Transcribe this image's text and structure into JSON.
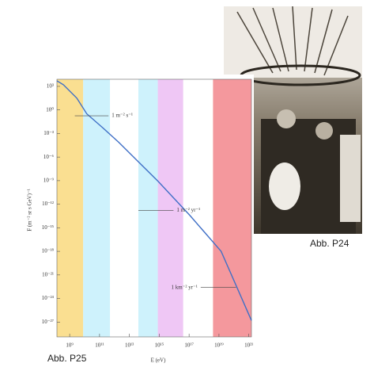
{
  "chart_data": {
    "type": "line",
    "xlabel": "E (eV)",
    "ylabel": "F (m⁻² sr s GeV)⁻¹",
    "xscale": "log",
    "yscale": "log",
    "xlim": [
      140000000.0,
      1.5e+21
    ],
    "ylim": [
      1.3e-29,
      8000.0
    ],
    "xticks": [
      {
        "value": 1000000000.0,
        "label": "10⁹"
      },
      {
        "value": 100000000000.0,
        "label": "10¹¹"
      },
      {
        "value": 10000000000000.0,
        "label": "10¹³"
      },
      {
        "value": 1000000000000000.0,
        "label": "10¹⁵"
      },
      {
        "value": 1e+17,
        "label": "10¹⁷"
      },
      {
        "value": 1e+19,
        "label": "10¹⁹"
      },
      {
        "value": 1e+21,
        "label": "10²¹"
      }
    ],
    "yticks": [
      {
        "value": 1000.0,
        "label": "10³"
      },
      {
        "value": 1,
        "label": "10⁰"
      },
      {
        "value": 0.001,
        "label": "10⁻³"
      },
      {
        "value": 1e-06,
        "label": "10⁻⁶"
      },
      {
        "value": 1e-09,
        "label": "10⁻⁹"
      },
      {
        "value": 1e-12,
        "label": "10⁻¹²"
      },
      {
        "value": 1e-15,
        "label": "10⁻¹⁵"
      },
      {
        "value": 1e-18,
        "label": "10⁻¹⁸"
      },
      {
        "value": 1e-21,
        "label": "10⁻²¹"
      },
      {
        "value": 1e-24,
        "label": "10⁻²⁴"
      },
      {
        "value": 1e-27,
        "label": "10⁻²⁷"
      }
    ],
    "bands": [
      {
        "from": 140000000.0,
        "to": 8000000000.0,
        "color": "#f9d97e"
      },
      {
        "from": 8000000000.0,
        "to": 500000000000.0,
        "color": "#c6f0fb"
      },
      {
        "from": 40000000000000.0,
        "to": 800000000000000.0,
        "color": "#c6f0fb"
      },
      {
        "from": 800000000000000.0,
        "to": 4e+16,
        "color": "#ecbdf3"
      },
      {
        "from": 4e+18,
        "to": 1.5e+21,
        "color": "#f2868c"
      }
    ],
    "series": [
      {
        "color": "#3f6fc6",
        "x": [
          140000000.0,
          380000000.0,
          3000000000.0,
          14000000000.0,
          160000000000.0,
          1900000000000.0,
          850000000000000.0,
          1.1e+17,
          1.4e+19,
          1.5e+21
        ],
        "values": [
          5000.0,
          1600.0,
          32,
          0.32,
          0.0056,
          7.9e-05,
          7.9e-10,
          4e-14,
          1e-18,
          1.6e-27
        ]
      }
    ],
    "annotations": [
      {
        "text": "1 m⁻² s⁻¹",
        "y": 0.18,
        "x": [
          2200000000.0,
          400000000000.0
        ],
        "side": "right"
      },
      {
        "text": "1 m⁻² yr⁻¹",
        "y": 1.6e-13,
        "x": [
          40000000000000.0,
          9000000000000000.0
        ],
        "side": "right"
      },
      {
        "text": "1 km⁻² yr⁻¹",
        "y": 2.5e-23,
        "x": [
          6e+17,
          1.4e+20
        ],
        "side": "left"
      }
    ]
  },
  "captions": {
    "photo": "Abb. P24",
    "chart": "Abb. P25"
  }
}
